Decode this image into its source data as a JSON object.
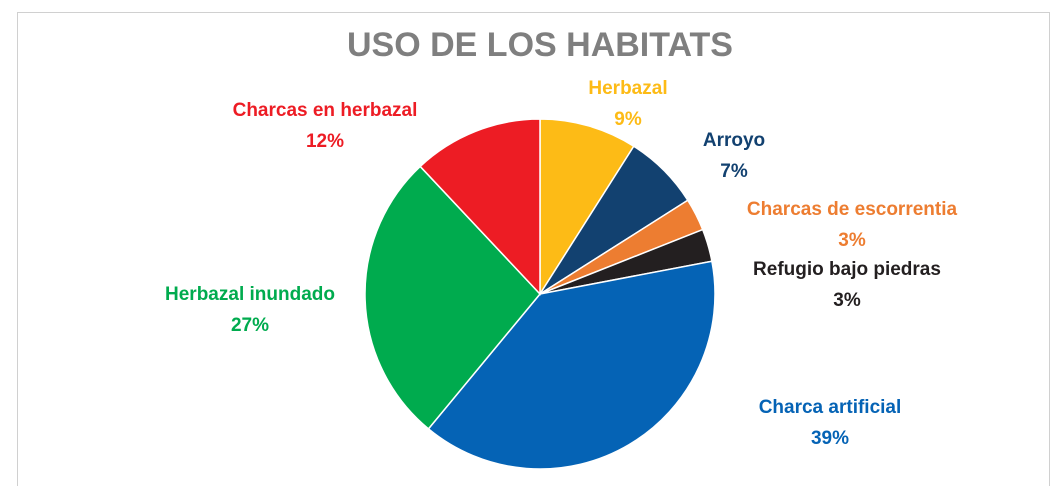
{
  "chart_data": {
    "type": "pie",
    "title": "USO DE LOS HABITATS",
    "categories": [
      "Herbazal",
      "Arroyo",
      "Charcas de escorrentia",
      "Refugio bajo piedras",
      "Charca artificial",
      "Herbazal inundado",
      "Charcas en herbazal"
    ],
    "values": [
      9,
      7,
      3,
      3,
      39,
      27,
      12
    ],
    "value_labels": [
      "9%",
      "7%",
      "3%",
      "3%",
      "39%",
      "27%",
      "12%"
    ],
    "colors": [
      "#fdbb16",
      "#124170",
      "#ed7d31",
      "#231f20",
      "#0563b5",
      "#00ab4e",
      "#ed1c24"
    ]
  }
}
